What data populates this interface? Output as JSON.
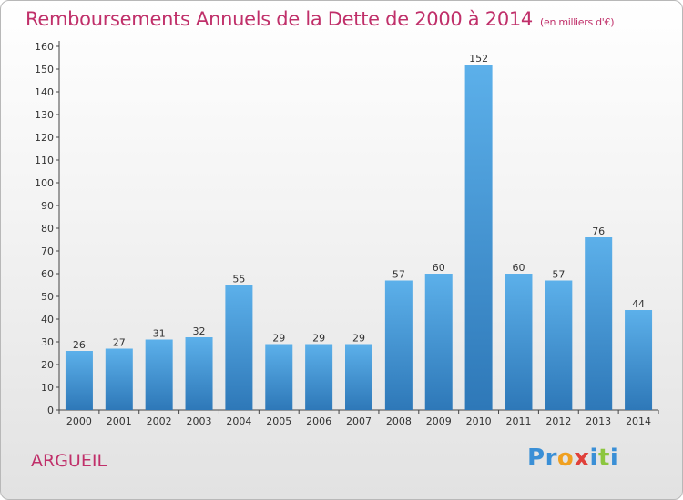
{
  "title": "Remboursements Annuels de la Dette de 2000 à 2014",
  "unit": "(en milliers d'€)",
  "place": "ARGUEIL",
  "logo": {
    "text": "Proxiti",
    "letters": [
      {
        "ch": "P",
        "color": "#3a8fd6"
      },
      {
        "ch": "r",
        "color": "#3a8fd6"
      },
      {
        "ch": "o",
        "color": "#f0a020"
      },
      {
        "ch": "x",
        "color": "#e0403a"
      },
      {
        "ch": "i",
        "color": "#3a8fd6"
      },
      {
        "ch": "t",
        "color": "#8cc63f"
      },
      {
        "ch": "i",
        "color": "#3a8fd6"
      }
    ]
  },
  "colors": {
    "bar_top": "#5cb0ea",
    "bar_bottom": "#2e78b8",
    "title": "#c0306a"
  },
  "chart_data": {
    "type": "bar",
    "title": "Remboursements Annuels de la Dette de 2000 à 2014",
    "subtitle": "(en milliers d'€)",
    "xlabel": "",
    "ylabel": "",
    "categories": [
      "2000",
      "2001",
      "2002",
      "2003",
      "2004",
      "2005",
      "2006",
      "2007",
      "2008",
      "2009",
      "2010",
      "2011",
      "2012",
      "2013",
      "2014"
    ],
    "values": [
      26,
      27,
      31,
      32,
      55,
      29,
      29,
      29,
      57,
      60,
      152,
      60,
      57,
      76,
      44
    ],
    "ylim": [
      0,
      160
    ],
    "yticks": [
      0,
      10,
      20,
      30,
      40,
      50,
      60,
      70,
      80,
      90,
      100,
      110,
      120,
      130,
      140,
      150,
      160
    ],
    "grid": false,
    "legend": "none"
  }
}
